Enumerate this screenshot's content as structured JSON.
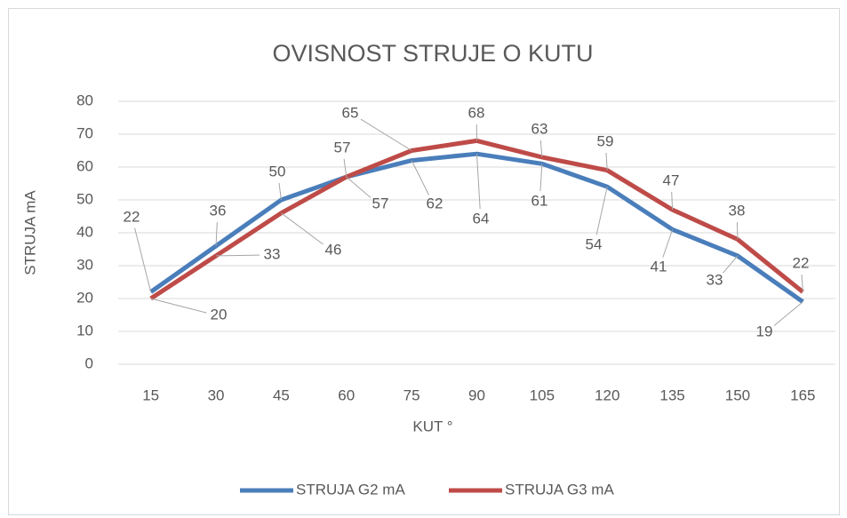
{
  "chart_data": {
    "type": "line",
    "title": "OVISNOST STRUJE O KUTU",
    "x_label": "KUT °",
    "y_label": "STRUJA mA",
    "categories": [
      15,
      30,
      45,
      60,
      75,
      90,
      105,
      120,
      135,
      150,
      165
    ],
    "series": [
      {
        "name": "STRUJA G2 mA",
        "color": "#4a7ebb",
        "values": [
          22,
          36,
          50,
          57,
          62,
          64,
          61,
          54,
          41,
          33,
          19
        ]
      },
      {
        "name": "STRUJA G3 mA",
        "color": "#be4b48",
        "values": [
          20,
          33,
          46,
          57,
          65,
          68,
          63,
          59,
          47,
          38,
          22
        ]
      }
    ],
    "ylim": [
      0,
      80
    ],
    "yticks": [
      0,
      10,
      20,
      30,
      40,
      50,
      60,
      70,
      80
    ],
    "grid": true,
    "legend": "bottom"
  }
}
